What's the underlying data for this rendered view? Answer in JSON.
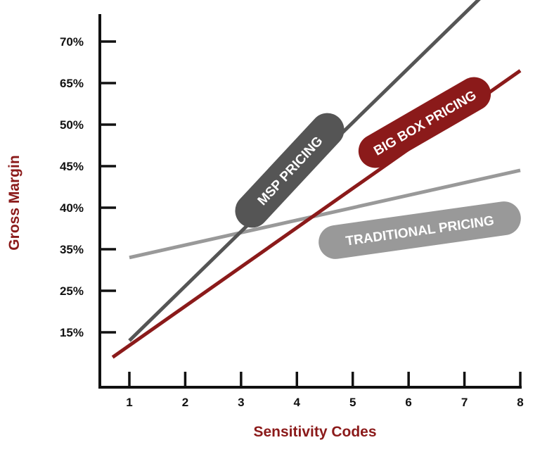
{
  "chart_data": {
    "type": "line",
    "xlabel": "Sensitivity Codes",
    "ylabel": "Gross Margin",
    "x_ticks": [
      "1",
      "2",
      "3",
      "4",
      "5",
      "6",
      "7",
      "8"
    ],
    "y_ticks": [
      "15%",
      "25%",
      "35%",
      "40%",
      "45%",
      "50%",
      "65%",
      "70%"
    ],
    "ylim_index": [
      0,
      8.4
    ],
    "xlim": [
      0.7,
      8.0
    ],
    "note": "y tick labels are unevenly spaced categorical labels; series y values are given on the tick-index scale (0 = axis baseline, 1 = 15%, ..., 8 = 70%)",
    "grid": false,
    "series": [
      {
        "name": "MSP PRICING",
        "color": "#555555",
        "points": [
          [
            1.0,
            0.8
          ],
          [
            7.4,
            9.2
          ]
        ]
      },
      {
        "name": "BIG BOX PRICING",
        "color": "#8b1a1a",
        "points": [
          [
            0.7,
            0.4
          ],
          [
            8.0,
            7.3
          ]
        ]
      },
      {
        "name": "TRADITIONAL PRICING",
        "color": "#999999",
        "points": [
          [
            1.0,
            2.8
          ],
          [
            8.0,
            4.9
          ]
        ]
      }
    ]
  },
  "colors": {
    "axis": "#111111",
    "title_red": "#8b1a1a"
  }
}
